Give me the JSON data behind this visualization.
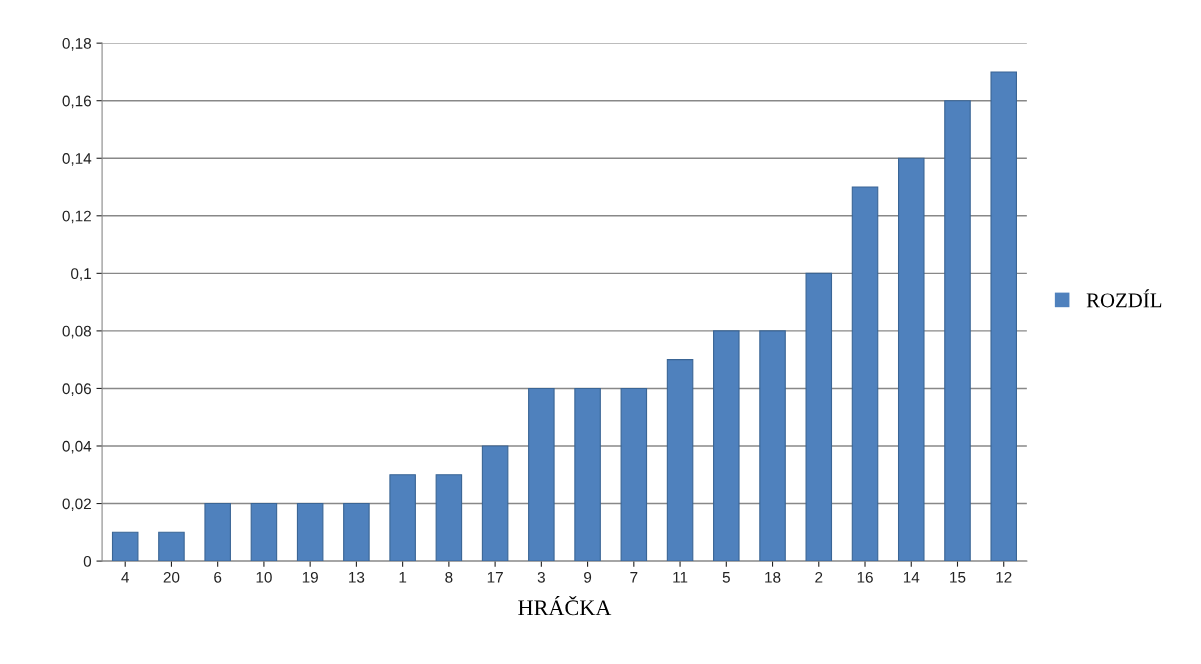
{
  "chart_data": {
    "type": "bar",
    "xlabel": "HRÁČKA",
    "categories": [
      "4",
      "20",
      "6",
      "10",
      "19",
      "13",
      "1",
      "8",
      "17",
      "3",
      "9",
      "7",
      "11",
      "5",
      "18",
      "2",
      "16",
      "14",
      "15",
      "12"
    ],
    "series": [
      {
        "name": "ROZDÍL",
        "color": "#4f81bd",
        "values": [
          0.01,
          0.01,
          0.02,
          0.02,
          0.02,
          0.02,
          0.03,
          0.03,
          0.04,
          0.06,
          0.06,
          0.06,
          0.07,
          0.08,
          0.08,
          0.1,
          0.13,
          0.14,
          0.16,
          0.17
        ]
      }
    ],
    "ylim": [
      0,
      0.18
    ],
    "yticks": [
      0,
      {
        "value": 0.02,
        "label": "0,02"
      },
      {
        "value": 0.04,
        "label": "0,04"
      },
      {
        "value": 0.06,
        "label": "0,06"
      },
      {
        "value": 0.08,
        "label": "0,08"
      },
      {
        "value": 0.1,
        "label": "0,1"
      },
      {
        "value": 0.12,
        "label": "0,12"
      },
      {
        "value": 0.14,
        "label": "0,14"
      },
      {
        "value": 0.16,
        "label": "0,16"
      },
      {
        "value": 0.18,
        "label": "0,18"
      }
    ],
    "grid": "y",
    "legend": "right"
  }
}
